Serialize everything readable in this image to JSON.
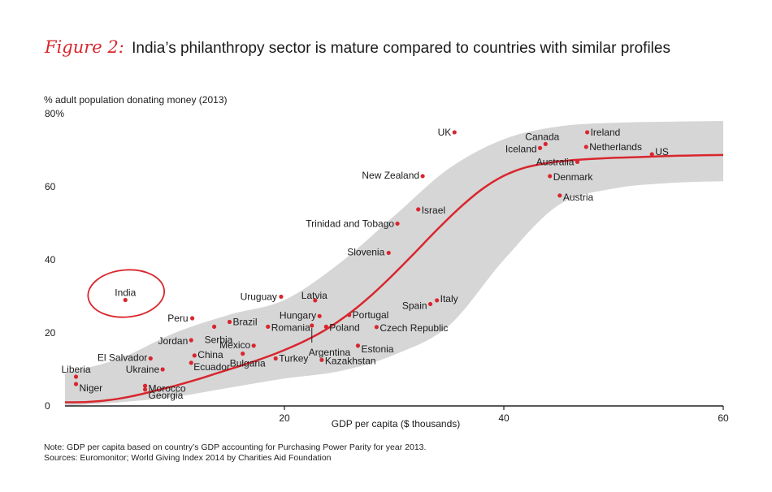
{
  "title": {
    "figure_label": "Figure 2:",
    "text": "India’s philanthropy sector is mature compared to countries with similar profiles"
  },
  "colors": {
    "accent": "#d9262e",
    "band": "#d6d6d6",
    "point": "#d9262e"
  },
  "chart_data": {
    "type": "scatter",
    "ylabel": "% adult population donating money (2013)",
    "xlabel": "GDP per capita ($ thousands)",
    "xlim": [
      0,
      60
    ],
    "ylim": [
      0,
      80
    ],
    "xticks": [
      "20",
      "40",
      "60"
    ],
    "xtick_values": [
      20,
      40,
      60
    ],
    "yticks": [
      "0",
      "20",
      "40",
      "60",
      "80%"
    ],
    "ytick_values": [
      0,
      20,
      40,
      60,
      80
    ],
    "highlight": "India",
    "points": [
      {
        "name": "Liberia",
        "x": 1.0,
        "y": 8
      },
      {
        "name": "Niger",
        "x": 1.0,
        "y": 6
      },
      {
        "name": "El Salvador",
        "x": 7.8,
        "y": 13
      },
      {
        "name": "Ukraine",
        "x": 8.9,
        "y": 10
      },
      {
        "name": "Morocco",
        "x": 7.3,
        "y": 5.5
      },
      {
        "name": "Georgia",
        "x": 7.3,
        "y": 4.5
      },
      {
        "name": "India",
        "x": 5.5,
        "y": 29
      },
      {
        "name": "Peru",
        "x": 11.6,
        "y": 24
      },
      {
        "name": "Serbia",
        "x": 13.6,
        "y": 21.7
      },
      {
        "name": "Brazil",
        "x": 15.0,
        "y": 23
      },
      {
        "name": "Jordan",
        "x": 11.5,
        "y": 18
      },
      {
        "name": "China",
        "x": 11.8,
        "y": 13.8
      },
      {
        "name": "Ecuador",
        "x": 11.5,
        "y": 11.8
      },
      {
        "name": "Mexico",
        "x": 17.2,
        "y": 16.5
      },
      {
        "name": "Bulgaria",
        "x": 16.2,
        "y": 14.3
      },
      {
        "name": "Turkey",
        "x": 19.2,
        "y": 13
      },
      {
        "name": "Uruguay",
        "x": 19.7,
        "y": 29.9
      },
      {
        "name": "Romania",
        "x": 18.5,
        "y": 21.7
      },
      {
        "name": "Latvia",
        "x": 22.8,
        "y": 28.9
      },
      {
        "name": "Hungary",
        "x": 23.2,
        "y": 24.6
      },
      {
        "name": "Argentina",
        "x": 22.5,
        "y": 22.0
      },
      {
        "name": "Poland",
        "x": 23.8,
        "y": 21.7
      },
      {
        "name": "Portugal",
        "x": 25.9,
        "y": 24.9
      },
      {
        "name": "Kazakhstan",
        "x": 23.4,
        "y": 12.6
      },
      {
        "name": "Estonia",
        "x": 26.7,
        "y": 16.5
      },
      {
        "name": "Czech Republic",
        "x": 28.4,
        "y": 21.6
      },
      {
        "name": "Slovenia",
        "x": 29.5,
        "y": 41.9
      },
      {
        "name": "Trinidad and Tobago",
        "x": 30.3,
        "y": 49.9
      },
      {
        "name": "Israel",
        "x": 32.2,
        "y": 53.8
      },
      {
        "name": "New Zealand",
        "x": 32.6,
        "y": 62.9
      },
      {
        "name": "Spain",
        "x": 33.3,
        "y": 27.9
      },
      {
        "name": "Italy",
        "x": 33.9,
        "y": 28.9
      },
      {
        "name": "UK",
        "x": 35.5,
        "y": 74.9
      },
      {
        "name": "Canada",
        "x": 43.8,
        "y": 71.7
      },
      {
        "name": "Iceland",
        "x": 43.3,
        "y": 70.6
      },
      {
        "name": "Ireland",
        "x": 47.6,
        "y": 74.9
      },
      {
        "name": "Netherlands",
        "x": 47.5,
        "y": 70.9
      },
      {
        "name": "Australia",
        "x": 46.7,
        "y": 66.8
      },
      {
        "name": "Denmark",
        "x": 44.2,
        "y": 62.9
      },
      {
        "name": "Austria",
        "x": 45.1,
        "y": 57.6
      },
      {
        "name": "US",
        "x": 53.5,
        "y": 68.9
      }
    ],
    "trend_line": {
      "x": [
        0,
        2,
        4,
        6,
        8,
        10,
        12,
        14,
        16,
        18,
        20,
        22,
        24,
        26,
        28,
        30,
        32,
        34,
        36,
        38,
        40,
        42,
        44,
        46,
        48,
        50,
        52,
        54,
        56,
        58,
        60
      ],
      "y": [
        1.0,
        1.1,
        1.6,
        2.6,
        4.0,
        5.5,
        7.2,
        9.1,
        11.0,
        13.0,
        15.3,
        18.0,
        21.3,
        25.5,
        30.5,
        36.2,
        42.3,
        48.5,
        54.3,
        59.3,
        63.0,
        65.3,
        66.5,
        67.2,
        67.6,
        67.9,
        68.1,
        68.3,
        68.5,
        68.6,
        68.7
      ]
    },
    "band": {
      "x": [
        0,
        5,
        10,
        15,
        20,
        25,
        30,
        35,
        40,
        45,
        50,
        55,
        60
      ],
      "upper": [
        9,
        13,
        20,
        25,
        29,
        39,
        52,
        65,
        73,
        76.5,
        77.5,
        77.8,
        78
      ],
      "lower": [
        0,
        1,
        2.5,
        5,
        7.5,
        9.5,
        14,
        22,
        40,
        55,
        59.5,
        61,
        61.5
      ]
    }
  },
  "notes": {
    "line1": "Note: GDP per capita based on country’s GDP accounting for Purchasing Power Parity for year 2013.",
    "line2": "Sources: Euromonitor; World Giving Index 2014 by Charities Aid Foundation"
  }
}
